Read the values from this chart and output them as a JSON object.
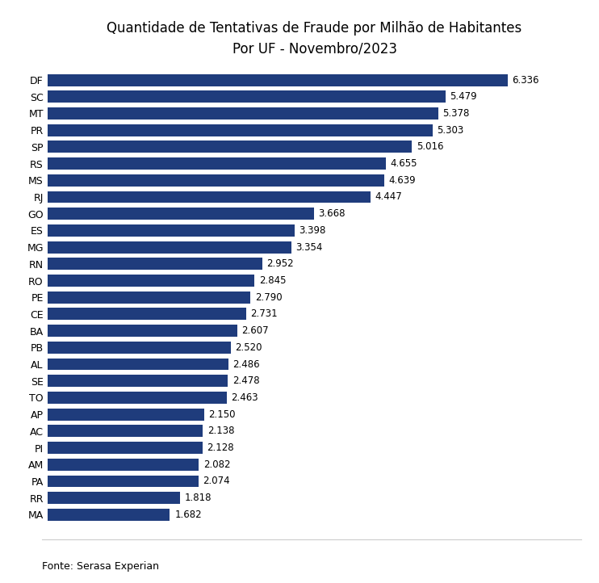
{
  "title": "Quantidade de Tentativas de Fraude por Milhão de Habitantes\nPor UF - Novembro/2023",
  "categories": [
    "DF",
    "SC",
    "MT",
    "PR",
    "SP",
    "RS",
    "MS",
    "RJ",
    "GO",
    "ES",
    "MG",
    "RN",
    "RO",
    "PE",
    "CE",
    "BA",
    "PB",
    "AL",
    "SE",
    "TO",
    "AP",
    "AC",
    "PI",
    "AM",
    "PA",
    "RR",
    "MA"
  ],
  "values": [
    6336,
    5479,
    5378,
    5303,
    5016,
    4655,
    4639,
    4447,
    3668,
    3398,
    3354,
    2952,
    2845,
    2790,
    2731,
    2607,
    2520,
    2486,
    2478,
    2463,
    2150,
    2138,
    2128,
    2082,
    2074,
    1818,
    1682
  ],
  "value_labels": [
    "6.336",
    "5.479",
    "5.378",
    "5.303",
    "5.016",
    "4.655",
    "4.639",
    "4.447",
    "3.668",
    "3.398",
    "3.354",
    "2.952",
    "2.845",
    "2.790",
    "2.731",
    "2.607",
    "2.520",
    "2.486",
    "2.478",
    "2.463",
    "2.150",
    "2.138",
    "2.128",
    "2.082",
    "2.074",
    "1.818",
    "1.682"
  ],
  "bar_color": "#1F3C7C",
  "background_color": "#FFFFFF",
  "title_fontsize": 12,
  "label_fontsize": 9,
  "value_fontsize": 8.5,
  "footer": "Fonte: Serasa Experian",
  "footer_fontsize": 9
}
